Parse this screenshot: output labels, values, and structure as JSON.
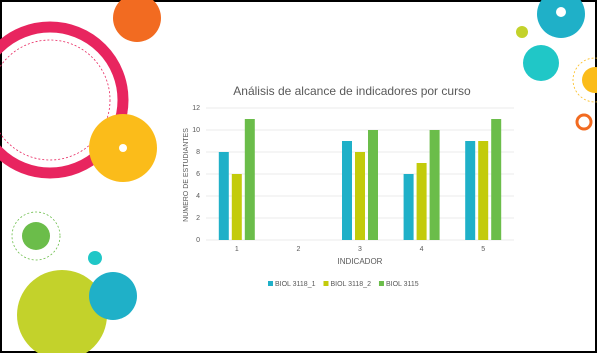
{
  "chart_data": {
    "type": "bar",
    "title": "Análisis de alcance de indicadores por curso",
    "x_label": "INDICADOR",
    "y_label": "NUMERO DE ESTUDIANTES",
    "categories": [
      "1",
      "2",
      "3",
      "4",
      "5"
    ],
    "series": [
      {
        "name": "BIOL 3118_1",
        "color": "#1fb0c8",
        "values": [
          8,
          null,
          9,
          6,
          9
        ]
      },
      {
        "name": "BIOL 3118_2",
        "color": "#c3cb0b",
        "values": [
          6,
          null,
          8,
          7,
          9
        ]
      },
      {
        "name": "BIOL 3115",
        "color": "#6bbd4a",
        "values": [
          11,
          null,
          10,
          10,
          11
        ]
      }
    ],
    "ylim": [
      0,
      12
    ],
    "yticks": [
      0,
      2,
      4,
      6,
      8,
      10,
      12
    ],
    "grid": true,
    "legend": "bottom"
  }
}
